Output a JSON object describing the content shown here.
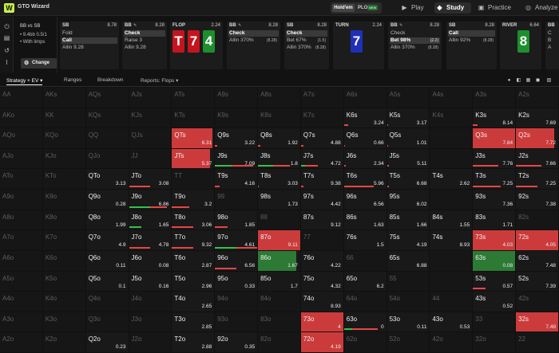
{
  "app": {
    "title": "GTO Wizard",
    "logo": "W"
  },
  "format": {
    "holdem": "Hold'em",
    "plo": "PLO",
    "plo_badge": "NEW"
  },
  "nav": {
    "play": "Play",
    "study": "Study",
    "practice": "Practice",
    "analyze": "Analyze"
  },
  "game": {
    "title": "BB vs SB",
    "line1": "• 9.4bb 0.5/1",
    "line2": "• With limps",
    "change_label": "Change"
  },
  "actions": [
    {
      "position": "SB",
      "stack": "8.78",
      "options": [
        {
          "label": "Fold"
        },
        {
          "label": "Call",
          "selected": true
        },
        {
          "label": "Allin 9.28"
        }
      ]
    },
    {
      "position": "BB",
      "stack": "8.28",
      "edit": true,
      "options": [
        {
          "label": "Check",
          "selected": true
        },
        {
          "label": "Raise 3"
        },
        {
          "label": "Allin 9.28"
        }
      ]
    },
    {
      "position": "FLOP",
      "stack": "2.24",
      "cards": [
        {
          "rank": "T",
          "color": "red"
        },
        {
          "rank": "7",
          "color": "red"
        },
        {
          "rank": "4",
          "color": "green"
        }
      ]
    },
    {
      "position": "BB",
      "stack": "8.28",
      "edit": true,
      "options": [
        {
          "label": "Check",
          "selected": true
        },
        {
          "label": "Allin 370%",
          "extra": "(8.28)"
        }
      ]
    },
    {
      "position": "SB",
      "stack": "8.28",
      "options": [
        {
          "label": "Check",
          "selected": true
        },
        {
          "label": "Bet 67%",
          "extra": "(1.5)"
        },
        {
          "label": "Allin 370%",
          "extra": "(8.28)"
        }
      ]
    },
    {
      "position": "TURN",
      "stack": "2.24",
      "cards": [
        {
          "rank": "7",
          "color": "blue"
        }
      ]
    },
    {
      "position": "BB",
      "stack": "8.28",
      "edit": true,
      "options": [
        {
          "label": "Check"
        },
        {
          "label": "Bet 98%",
          "extra": "(2.2)",
          "selected": true
        },
        {
          "label": "Allin 370%",
          "extra": "(8.28)"
        }
      ]
    },
    {
      "position": "SB",
      "stack": "8.28",
      "options": [
        {
          "label": "Call",
          "selected": true
        },
        {
          "label": "Allin 92%",
          "extra": "(8.28)"
        }
      ]
    },
    {
      "position": "RIVER",
      "stack": "6.64",
      "cards": [
        {
          "rank": "8",
          "color": "green"
        }
      ]
    },
    {
      "position": "BB",
      "stack": "",
      "options": [
        {
          "label": "C"
        },
        {
          "label": "B"
        },
        {
          "label": "A"
        }
      ]
    }
  ],
  "toolbar": {
    "strategy": "Strategy + EV",
    "ranges": "Ranges",
    "breakdown": "Breakdown",
    "reports": "Reports: Flops"
  },
  "icons": {
    "sidebar": [
      "power-icon",
      "save-icon",
      "undo-icon",
      "text-cursor-icon"
    ],
    "card_colors": {
      "red": "#c4151e",
      "green": "#1d8f2d",
      "blue": "#1e30b8"
    }
  },
  "colors": {
    "fold_red": "#e94545",
    "call_green": "#35c04a",
    "accent": "#c9ee4a"
  },
  "grid": {
    "ranks": [
      "A",
      "K",
      "Q",
      "J",
      "T",
      "9",
      "8",
      "7",
      "6",
      "5",
      "4",
      "3",
      "2"
    ],
    "cells": {
      "A": [
        [
          "AA",
          "",
          0,
          0,
          0
        ],
        [
          "AKs",
          "",
          0,
          0,
          0
        ],
        [
          "AQs",
          "",
          0,
          0,
          0
        ],
        [
          "AJs",
          "",
          0,
          0,
          0
        ],
        [
          "ATs",
          "",
          0,
          0,
          0
        ],
        [
          "A9s",
          "",
          0,
          0,
          0
        ],
        [
          "A8s",
          "",
          0,
          0,
          0
        ],
        [
          "A7s",
          "",
          0,
          0,
          0
        ],
        [
          "A6s",
          "",
          0,
          0,
          0
        ],
        [
          "A5s",
          "",
          0,
          0,
          0
        ],
        [
          "A4s",
          "",
          0,
          0,
          0
        ],
        [
          "A3s",
          "",
          0,
          0,
          0
        ],
        [
          "A2s",
          "",
          0,
          0,
          0
        ]
      ],
      "K": [
        [
          "AKo",
          "",
          0,
          0,
          0
        ],
        [
          "KK",
          "",
          0,
          0,
          0
        ],
        [
          "KQs",
          "",
          0,
          0,
          0
        ],
        [
          "KJs",
          "",
          0,
          0,
          0
        ],
        [
          "KTs",
          "",
          0,
          0,
          0
        ],
        [
          "K9s",
          "",
          0,
          0,
          0
        ],
        [
          "K8s",
          "",
          0,
          0,
          0
        ],
        [
          "K7s",
          "",
          0,
          0,
          0
        ],
        [
          "K6s",
          "3.24",
          1,
          0,
          0.1
        ],
        [
          "K5s",
          "3.17",
          1,
          0,
          0.02
        ],
        [
          "K4s",
          "",
          0,
          0,
          0
        ],
        [
          "K3s",
          "8.14",
          1,
          0,
          0.1
        ],
        [
          "K2s",
          "7.69",
          1,
          0,
          0
        ]
      ],
      "Q": [
        [
          "AQo",
          "",
          0,
          0,
          0
        ],
        [
          "KQo",
          "",
          0,
          0,
          0
        ],
        [
          "QQ",
          "",
          0,
          0,
          0
        ],
        [
          "QJs",
          "",
          0,
          0,
          0
        ],
        [
          "QTs",
          "6.31",
          1,
          0,
          0.95
        ],
        [
          "Q9s",
          "3.22",
          1,
          0,
          0.05
        ],
        [
          "Q8s",
          "1.92",
          1,
          0,
          0.05
        ],
        [
          "Q7s",
          "4.88",
          1,
          0,
          0.05
        ],
        [
          "Q6s",
          "0.66",
          1,
          0,
          0.02
        ],
        [
          "Q5s",
          "1.01",
          1,
          0,
          0.02
        ],
        [
          "",
          ""
        ],
        [
          "Q3s",
          "7.84",
          1,
          0,
          1
        ],
        [
          "Q2s",
          "7.72",
          1,
          0,
          0.9
        ]
      ],
      "J": [
        [
          "AJo",
          "",
          0,
          0,
          0
        ],
        [
          "KJo",
          "",
          0,
          0,
          0
        ],
        [
          "QJo",
          "",
          0,
          0,
          0
        ],
        [
          "JJ",
          "",
          0,
          0,
          0
        ],
        [
          "JTs",
          "5.37",
          1,
          0,
          0.9
        ],
        [
          "J9s",
          "7.09",
          1,
          0.4,
          0.5
        ],
        [
          "J8s",
          "1.8",
          1,
          0.35,
          0.4
        ],
        [
          "J7s",
          "4.72",
          1,
          0.1,
          0.3
        ],
        [
          "J6s",
          "2.34",
          1,
          0,
          0.05
        ],
        [
          "J5s",
          "5.11",
          1,
          0,
          0.05
        ],
        [
          "",
          ""
        ],
        [
          "J3s",
          "7.76",
          1,
          0,
          0.6
        ],
        [
          "J2s",
          "7.66",
          1,
          0,
          0.6
        ]
      ],
      "T": [
        [
          "ATo",
          "",
          0,
          0,
          0
        ],
        [
          "KTo",
          "",
          0,
          0,
          0
        ],
        [
          "QTo",
          "3.13",
          1,
          0,
          0
        ],
        [
          "JTo",
          "3.08",
          1,
          0,
          0.5
        ],
        [
          "TT",
          "",
          0,
          0,
          0
        ],
        [
          "T9s",
          "4.16",
          1,
          0,
          0.1
        ],
        [
          "T8s",
          "3.03",
          1,
          0,
          0.02
        ],
        [
          "T7s",
          "9.38",
          1,
          0,
          0.05
        ],
        [
          "T6s",
          "5.96",
          1,
          0,
          0.7
        ],
        [
          "T5s",
          "6.68",
          1,
          0,
          0.05
        ],
        [
          "T4s",
          "2.62",
          1,
          0,
          0
        ],
        [
          "T3s",
          "7.25",
          1,
          0,
          0.65
        ],
        [
          "T2s",
          "7.25",
          1,
          0,
          0.5
        ]
      ],
      "9": [
        [
          "A9o",
          "",
          0,
          0,
          0
        ],
        [
          "K9o",
          "",
          0,
          0,
          0
        ],
        [
          "Q9o",
          "0.28",
          1,
          0,
          0
        ],
        [
          "J9o",
          "6.86",
          1,
          0.5,
          0.4
        ],
        [
          "T9o",
          "3.2",
          1,
          0,
          0.4
        ],
        [
          "99",
          "",
          0,
          0,
          0
        ],
        [
          "98s",
          "1.73",
          1,
          0,
          0
        ],
        [
          "97s",
          "4.42",
          1,
          0,
          0
        ],
        [
          "96s",
          "6.56",
          1,
          0,
          0
        ],
        [
          "95s",
          "6.02",
          1,
          0,
          0
        ],
        [
          "",
          ""
        ],
        [
          "93s",
          "7.36",
          1,
          0,
          0
        ],
        [
          "92s",
          "7.38",
          1,
          0,
          0
        ]
      ],
      "8": [
        [
          "A8o",
          "",
          0,
          0,
          0
        ],
        [
          "K8o",
          "",
          0,
          0,
          0
        ],
        [
          "Q8o",
          "1.99",
          1,
          0,
          0
        ],
        [
          "J8o",
          "1.65",
          1,
          0.3,
          0
        ],
        [
          "T8o",
          "3.06",
          1,
          0,
          0.5
        ],
        [
          "98o",
          "1.85",
          1,
          0,
          0.3
        ],
        [
          "88",
          "",
          0,
          0,
          0
        ],
        [
          "87s",
          "9.12",
          1,
          0,
          0
        ],
        [
          "86s",
          "1.63",
          1,
          0,
          0
        ],
        [
          "85s",
          "1.66",
          1,
          0,
          0
        ],
        [
          "84s",
          "1.55",
          1,
          0,
          0
        ],
        [
          "83s",
          "1.71",
          1,
          0,
          0
        ],
        [
          "82s",
          "",
          0,
          0,
          0
        ]
      ],
      "7": [
        [
          "A7o",
          "",
          0,
          0,
          0
        ],
        [
          "K7o",
          "",
          0,
          0,
          0
        ],
        [
          "Q7o",
          "4.9",
          1,
          0,
          0
        ],
        [
          "J7o",
          "4.78",
          1,
          0,
          0.5
        ],
        [
          "T7o",
          "9.32",
          1,
          0,
          0.5
        ],
        [
          "97o",
          "4.61",
          1,
          0.5,
          0.5
        ],
        [
          "87o",
          "9.11",
          1,
          0,
          1
        ],
        [
          "77",
          "",
          0,
          0,
          0
        ],
        [
          "76s",
          "1.5",
          1,
          0,
          0
        ],
        [
          "75s",
          "4.19",
          1,
          0,
          0
        ],
        [
          "74s",
          "8.93",
          1,
          0,
          0
        ],
        [
          "73s",
          "4.03",
          1,
          0,
          1
        ],
        [
          "72s",
          "4.05",
          1,
          0,
          1
        ]
      ],
      "6": [
        [
          "A6o",
          "",
          0,
          0,
          0
        ],
        [
          "K6o",
          "",
          0,
          0,
          0
        ],
        [
          "Q6o",
          "0.11",
          1,
          0,
          0
        ],
        [
          "J6o",
          "0.08",
          1,
          0,
          0
        ],
        [
          "T6o",
          "2.87",
          1,
          0,
          0
        ],
        [
          "96o",
          "6.56",
          1,
          0,
          0.5
        ],
        [
          "86o",
          "1.67",
          1,
          0.9,
          0
        ],
        [
          "76o",
          "4.22",
          1,
          0,
          0
        ],
        [
          "66",
          "",
          0,
          0,
          0
        ],
        [
          "65s",
          "6.88",
          1,
          0,
          0
        ],
        [
          "",
          ""
        ],
        [
          "63s",
          "0.08",
          1,
          1,
          0
        ],
        [
          "62s",
          "7.48",
          1,
          0,
          0
        ]
      ],
      "5": [
        [
          "A5o",
          "",
          0,
          0,
          0
        ],
        [
          "K5o",
          "",
          0,
          0,
          0
        ],
        [
          "Q5o",
          "0.1",
          1,
          0,
          0
        ],
        [
          "J5o",
          "0.16",
          1,
          0,
          0
        ],
        [
          "T5o",
          "2.96",
          1,
          0,
          0
        ],
        [
          "95o",
          "0.33",
          1,
          0,
          0
        ],
        [
          "85o",
          "1.7",
          1,
          0,
          0
        ],
        [
          "75o",
          "4.32",
          1,
          0,
          0
        ],
        [
          "65o",
          "6.2",
          1,
          0,
          0
        ],
        [
          "55",
          "",
          0,
          0,
          0
        ],
        [
          "",
          ""
        ],
        [
          "53s",
          "0.57",
          1,
          0,
          0.3
        ],
        [
          "52s",
          "7.39",
          1,
          0,
          0
        ]
      ],
      "4": [
        [
          "A4o",
          "",
          0,
          0,
          0
        ],
        [
          "K4o",
          "",
          0,
          0,
          0
        ],
        [
          "Q4o",
          "",
          0,
          0,
          0
        ],
        [
          "J4o",
          "",
          0,
          0,
          0
        ],
        [
          "T4o",
          "2.65",
          1,
          0,
          0
        ],
        [
          "94o",
          "",
          0,
          0,
          0
        ],
        [
          "84o",
          "",
          0,
          0,
          0
        ],
        [
          "74o",
          "8.93",
          1,
          0,
          0
        ],
        [
          "64o",
          "",
          0,
          0,
          0
        ],
        [
          "54o",
          "",
          0,
          0,
          0
        ],
        [
          "44",
          "",
          0,
          0,
          0
        ],
        [
          "43s",
          "0.52",
          1,
          0,
          0
        ],
        [
          "42s",
          "",
          0,
          0,
          0
        ]
      ],
      "3": [
        [
          "A3o",
          "",
          0,
          0,
          0
        ],
        [
          "K3o",
          "",
          0,
          0,
          0
        ],
        [
          "Q3o",
          "",
          0,
          0,
          0
        ],
        [
          "J3o",
          "",
          0,
          0,
          0
        ],
        [
          "T3o",
          "2.85",
          1,
          0,
          0
        ],
        [
          "93o",
          "",
          0,
          0,
          0
        ],
        [
          "83o",
          "",
          0,
          0,
          0
        ],
        [
          "73o",
          "4",
          1,
          0,
          1
        ],
        [
          "63o",
          "0",
          1,
          0.2,
          0.6
        ],
        [
          "53o",
          "0.11",
          1,
          0,
          0
        ],
        [
          "43o",
          "0.53",
          1,
          0,
          0
        ],
        [
          "33",
          "",
          0,
          0,
          0
        ],
        [
          "32s",
          "7.49",
          1,
          0,
          1
        ]
      ],
      "2": [
        [
          "A2o",
          "",
          0,
          0,
          0
        ],
        [
          "K2o",
          "",
          0,
          0,
          0
        ],
        [
          "Q2o",
          "0.23",
          1,
          0,
          0
        ],
        [
          "J2o",
          "",
          0,
          0,
          0
        ],
        [
          "T2o",
          "2.88",
          1,
          0,
          0
        ],
        [
          "92o",
          "0.35",
          1,
          0,
          0
        ],
        [
          "82o",
          "",
          0,
          0,
          0
        ],
        [
          "72o",
          "4.19",
          1,
          0,
          1
        ],
        [
          "62o",
          "",
          0,
          0,
          0
        ],
        [
          "52o",
          "",
          0,
          0,
          0
        ],
        [
          "42o",
          "",
          0,
          0,
          0
        ],
        [
          "32o",
          "",
          0,
          0,
          0
        ],
        [
          "22",
          "",
          0,
          0,
          0
        ]
      ]
    }
  }
}
